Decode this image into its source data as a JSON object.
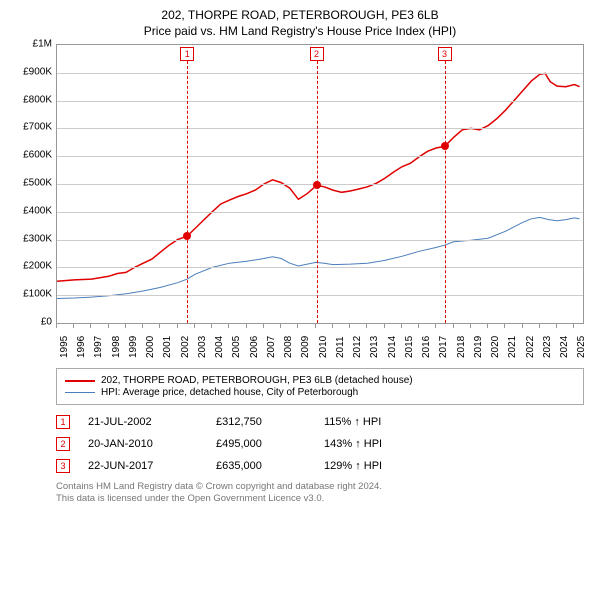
{
  "title_line1": "202, THORPE ROAD, PETERBOROUGH, PE3 6LB",
  "title_line2": "Price paid vs. HM Land Registry's House Price Index (HPI)",
  "chart": {
    "type": "line",
    "background_color": "#ffffff",
    "grid_color": "#cccccc",
    "border_color": "#999999",
    "axis_label_fontsize": 10,
    "ylim": [
      0,
      1000000
    ],
    "ytick_step": 100000,
    "y_ticks": [
      {
        "v": 0,
        "label": "£0"
      },
      {
        "v": 100000,
        "label": "£100K"
      },
      {
        "v": 200000,
        "label": "£200K"
      },
      {
        "v": 300000,
        "label": "£300K"
      },
      {
        "v": 400000,
        "label": "£400K"
      },
      {
        "v": 500000,
        "label": "£500K"
      },
      {
        "v": 600000,
        "label": "£600K"
      },
      {
        "v": 700000,
        "label": "£700K"
      },
      {
        "v": 800000,
        "label": "£800K"
      },
      {
        "v": 900000,
        "label": "£900K"
      },
      {
        "v": 1000000,
        "label": "£1M"
      }
    ],
    "xlim": [
      1995,
      2025.5
    ],
    "x_ticks": [
      1995,
      1996,
      1997,
      1998,
      1999,
      2000,
      2001,
      2002,
      2003,
      2004,
      2005,
      2006,
      2007,
      2008,
      2009,
      2010,
      2011,
      2012,
      2013,
      2014,
      2015,
      2016,
      2017,
      2018,
      2019,
      2020,
      2021,
      2022,
      2023,
      2024,
      2025
    ],
    "series": [
      {
        "name": "property_price",
        "label": "202, THORPE ROAD, PETERBOROUGH, PE3 6LB (detached house)",
        "color": "#e00000",
        "line_width": 1.5,
        "points": [
          [
            1995.0,
            150000
          ],
          [
            1996.0,
            155000
          ],
          [
            1997.0,
            158000
          ],
          [
            1998.0,
            168000
          ],
          [
            1998.5,
            178000
          ],
          [
            1999.0,
            182000
          ],
          [
            1999.5,
            200000
          ],
          [
            2000.0,
            215000
          ],
          [
            2000.5,
            230000
          ],
          [
            2001.0,
            255000
          ],
          [
            2001.5,
            280000
          ],
          [
            2002.0,
            300000
          ],
          [
            2002.55,
            312750
          ],
          [
            2003.0,
            340000
          ],
          [
            2003.5,
            370000
          ],
          [
            2004.0,
            400000
          ],
          [
            2004.5,
            428000
          ],
          [
            2005.0,
            442000
          ],
          [
            2005.5,
            455000
          ],
          [
            2006.0,
            465000
          ],
          [
            2006.5,
            478000
          ],
          [
            2007.0,
            500000
          ],
          [
            2007.5,
            515000
          ],
          [
            2008.0,
            505000
          ],
          [
            2008.5,
            485000
          ],
          [
            2009.0,
            445000
          ],
          [
            2009.5,
            465000
          ],
          [
            2010.05,
            495000
          ],
          [
            2010.5,
            490000
          ],
          [
            2011.0,
            478000
          ],
          [
            2011.5,
            470000
          ],
          [
            2012.0,
            475000
          ],
          [
            2012.5,
            482000
          ],
          [
            2013.0,
            490000
          ],
          [
            2013.5,
            502000
          ],
          [
            2014.0,
            520000
          ],
          [
            2014.5,
            542000
          ],
          [
            2015.0,
            562000
          ],
          [
            2015.5,
            575000
          ],
          [
            2016.0,
            598000
          ],
          [
            2016.5,
            618000
          ],
          [
            2017.0,
            630000
          ],
          [
            2017.47,
            635000
          ],
          [
            2018.0,
            668000
          ],
          [
            2018.5,
            695000
          ],
          [
            2019.0,
            700000
          ],
          [
            2019.5,
            695000
          ],
          [
            2020.0,
            710000
          ],
          [
            2020.5,
            735000
          ],
          [
            2021.0,
            765000
          ],
          [
            2021.5,
            800000
          ],
          [
            2022.0,
            835000
          ],
          [
            2022.5,
            870000
          ],
          [
            2023.0,
            895000
          ],
          [
            2023.3,
            898000
          ],
          [
            2023.6,
            868000
          ],
          [
            2024.0,
            852000
          ],
          [
            2024.5,
            850000
          ],
          [
            2025.0,
            858000
          ],
          [
            2025.3,
            850000
          ]
        ]
      },
      {
        "name": "hpi",
        "label": "HPI: Average price, detached house, City of Peterborough",
        "color": "#4a7ebb",
        "line_width": 1,
        "points": [
          [
            1995.0,
            88000
          ],
          [
            1996.0,
            90000
          ],
          [
            1997.0,
            93000
          ],
          [
            1998.0,
            98000
          ],
          [
            1999.0,
            105000
          ],
          [
            2000.0,
            115000
          ],
          [
            2001.0,
            128000
          ],
          [
            2002.0,
            145000
          ],
          [
            2002.55,
            158000
          ],
          [
            2003.0,
            175000
          ],
          [
            2004.0,
            200000
          ],
          [
            2005.0,
            215000
          ],
          [
            2006.0,
            222000
          ],
          [
            2007.0,
            232000
          ],
          [
            2007.5,
            238000
          ],
          [
            2008.0,
            232000
          ],
          [
            2008.5,
            215000
          ],
          [
            2009.0,
            205000
          ],
          [
            2010.0,
            218000
          ],
          [
            2010.5,
            215000
          ],
          [
            2011.0,
            210000
          ],
          [
            2012.0,
            212000
          ],
          [
            2013.0,
            215000
          ],
          [
            2014.0,
            225000
          ],
          [
            2015.0,
            240000
          ],
          [
            2016.0,
            258000
          ],
          [
            2017.0,
            272000
          ],
          [
            2017.47,
            280000
          ],
          [
            2018.0,
            292000
          ],
          [
            2019.0,
            298000
          ],
          [
            2020.0,
            305000
          ],
          [
            2021.0,
            330000
          ],
          [
            2022.0,
            362000
          ],
          [
            2022.5,
            375000
          ],
          [
            2023.0,
            380000
          ],
          [
            2023.5,
            372000
          ],
          [
            2024.0,
            368000
          ],
          [
            2024.5,
            372000
          ],
          [
            2025.0,
            378000
          ],
          [
            2025.3,
            375000
          ]
        ]
      }
    ],
    "markers": [
      {
        "n": "1",
        "x": 2002.55,
        "y": 312750
      },
      {
        "n": "2",
        "x": 2010.05,
        "y": 495000
      },
      {
        "n": "3",
        "x": 2017.47,
        "y": 635000
      }
    ]
  },
  "legend": {
    "items": [
      {
        "color": "#e00000",
        "width": 2,
        "label": "202, THORPE ROAD, PETERBOROUGH, PE3 6LB (detached house)"
      },
      {
        "color": "#4a7ebb",
        "width": 1,
        "label": "HPI: Average price, detached house, City of Peterborough"
      }
    ]
  },
  "sales": [
    {
      "n": "1",
      "date": "21-JUL-2002",
      "price": "£312,750",
      "pct": "115% ↑ HPI"
    },
    {
      "n": "2",
      "date": "20-JAN-2010",
      "price": "£495,000",
      "pct": "143% ↑ HPI"
    },
    {
      "n": "3",
      "date": "22-JUN-2017",
      "price": "£635,000",
      "pct": "129% ↑ HPI"
    }
  ],
  "footer_line1": "Contains HM Land Registry data © Crown copyright and database right 2024.",
  "footer_line2": "This data is licensed under the Open Government Licence v3.0."
}
